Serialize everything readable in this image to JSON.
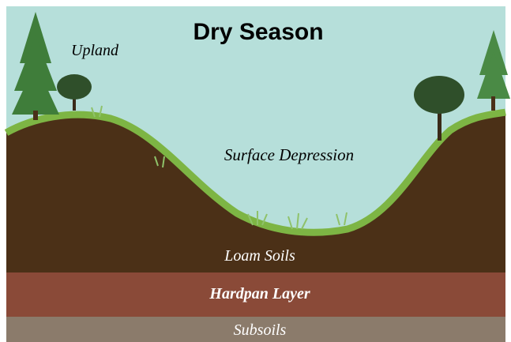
{
  "title": "Dry Season",
  "labels": {
    "upland": "Upland",
    "depression": "Surface Depression",
    "loam": "Loam Soils",
    "hardpan": "Hardpan Layer",
    "subsoils": "Subsoils"
  }
}
